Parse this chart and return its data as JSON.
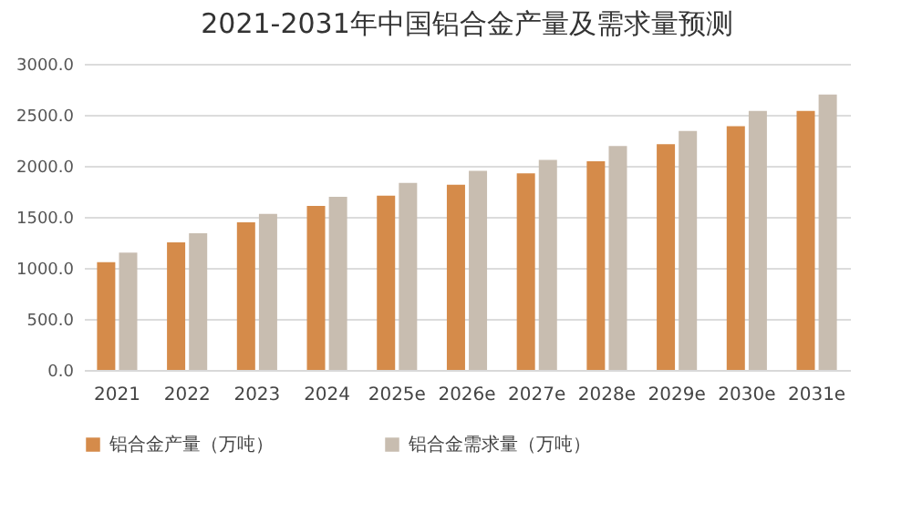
{
  "chart_data": {
    "type": "bar",
    "title": "2021-2031年中国铝合金产量及需求量预测",
    "categories": [
      "2021",
      "2022",
      "2023",
      "2024",
      "2025e",
      "2026e",
      "2027e",
      "2028e",
      "2029e",
      "2030e",
      "2031e"
    ],
    "series": [
      {
        "name": "铝合金产量（万吨）",
        "color": "#d58b4a",
        "values": [
          1055,
          1250,
          1447,
          1607,
          1708,
          1814,
          1927,
          2045,
          2211,
          2389,
          2537
        ]
      },
      {
        "name": "铝合金需求量（万吨）",
        "color": "#c8bdb0",
        "values": [
          1150,
          1340,
          1530,
          1696,
          1832,
          1951,
          2057,
          2194,
          2342,
          2537,
          2698
        ]
      }
    ],
    "ylim": [
      0,
      3000
    ],
    "yticks": [
      {
        "value": 0,
        "label": "0.0"
      },
      {
        "value": 500,
        "label": "500.0"
      },
      {
        "value": 1000,
        "label": "1000.0"
      },
      {
        "value": 1500,
        "label": "1500.0"
      },
      {
        "value": 2000,
        "label": "2000.0"
      },
      {
        "value": 2500,
        "label": "2500.0"
      },
      {
        "value": 3000,
        "label": "3000.0"
      }
    ],
    "grid": "y",
    "legend": "bottom"
  }
}
